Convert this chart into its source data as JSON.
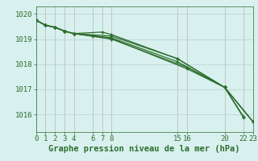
{
  "title": "Graphe pression niveau de la mer (hPa)",
  "background_color": "#d8f0ee",
  "plot_bg_color": "#d8f0ee",
  "grid_color_v": "#c0c0c0",
  "grid_color_h": "#b8d8d8",
  "line_color": "#2d6e2d",
  "ylim": [
    1015.3,
    1020.3
  ],
  "xlim": [
    0,
    23
  ],
  "yticks": [
    1016,
    1017,
    1018,
    1019,
    1020
  ],
  "xticks": [
    0,
    1,
    2,
    3,
    4,
    6,
    7,
    8,
    15,
    16,
    20,
    22,
    23
  ],
  "xtick_labels": [
    "0",
    "1",
    "2",
    "3",
    "4",
    "6",
    "7",
    "8",
    "15",
    "16",
    "20",
    "22",
    "23"
  ],
  "lines": [
    {
      "x": [
        0,
        1,
        2,
        3,
        4,
        7,
        8,
        15,
        20,
        22
      ],
      "y": [
        1019.75,
        1019.55,
        1019.47,
        1019.32,
        1019.22,
        1019.28,
        1019.18,
        1018.22,
        1017.08,
        1015.92
      ]
    },
    {
      "x": [
        0,
        1,
        2,
        3,
        4,
        8,
        15,
        20,
        23
      ],
      "y": [
        1019.75,
        1019.55,
        1019.47,
        1019.32,
        1019.22,
        1019.05,
        1018.1,
        1017.08,
        1015.72
      ]
    },
    {
      "x": [
        0,
        1,
        2,
        3,
        4,
        8,
        16,
        20,
        22
      ],
      "y": [
        1019.75,
        1019.55,
        1019.47,
        1019.32,
        1019.22,
        1019.0,
        1017.88,
        1017.08,
        1015.88
      ]
    },
    {
      "x": [
        0,
        1,
        2,
        3,
        4,
        6,
        8,
        16,
        20,
        23
      ],
      "y": [
        1019.75,
        1019.55,
        1019.47,
        1019.32,
        1019.22,
        1019.12,
        1019.02,
        1017.82,
        1017.08,
        1015.72
      ]
    },
    {
      "x": [
        0,
        1,
        2,
        3,
        4,
        8,
        15,
        20,
        23
      ],
      "y": [
        1019.75,
        1019.55,
        1019.47,
        1019.32,
        1019.22,
        1019.12,
        1018.22,
        1017.08,
        1015.72
      ]
    }
  ],
  "tick_fontsize": 6.5,
  "title_fontsize": 7.5
}
